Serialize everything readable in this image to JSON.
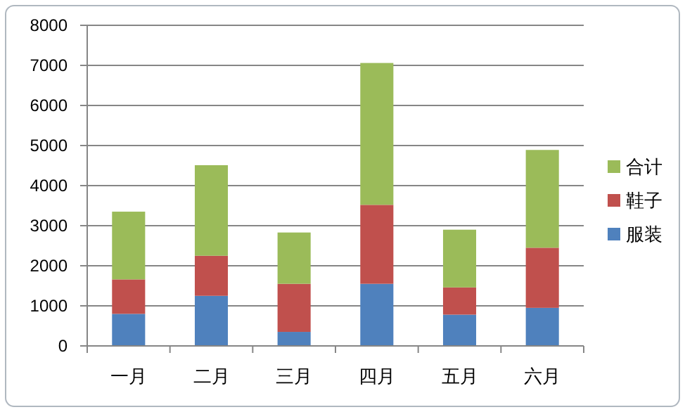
{
  "chart_data": {
    "type": "bar",
    "stacked": true,
    "categories": [
      "一月",
      "二月",
      "三月",
      "四月",
      "五月",
      "六月"
    ],
    "series": [
      {
        "name": "服装",
        "color": "#4f81bd",
        "values": [
          800,
          1250,
          350,
          1550,
          780,
          950
        ]
      },
      {
        "name": "鞋子",
        "color": "#c0504d",
        "values": [
          860,
          1000,
          1200,
          1970,
          680,
          1500
        ]
      },
      {
        "name": "合计",
        "color": "#9bbb59",
        "values": [
          1690,
          2260,
          1280,
          3540,
          1440,
          2440
        ]
      }
    ],
    "ylim": [
      0,
      8000
    ],
    "yticks": [
      0,
      1000,
      2000,
      3000,
      4000,
      5000,
      6000,
      7000,
      8000
    ],
    "grid": "y",
    "legend": "right"
  }
}
